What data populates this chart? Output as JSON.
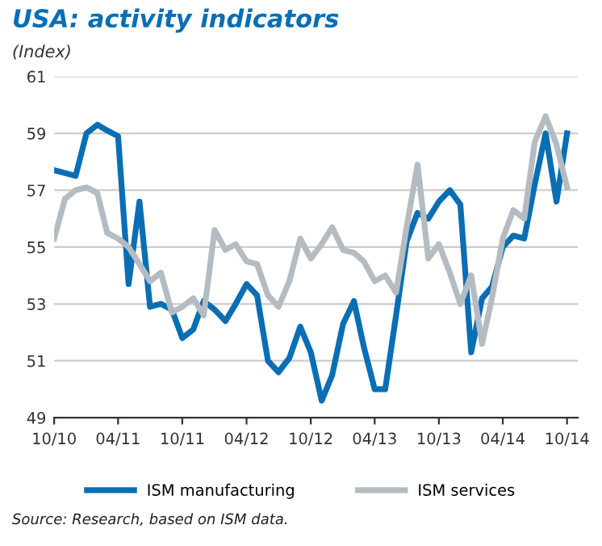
{
  "chart_data": {
    "type": "line",
    "title": "USA: activity indicators",
    "subtitle": "(Index)",
    "x": [
      "2010-10",
      "2010-11",
      "2010-12",
      "2011-01",
      "2011-02",
      "2011-03",
      "2011-04",
      "2011-05",
      "2011-06",
      "2011-07",
      "2011-08",
      "2011-09",
      "2011-10",
      "2011-11",
      "2011-12",
      "2012-01",
      "2012-02",
      "2012-03",
      "2012-04",
      "2012-05",
      "2012-06",
      "2012-07",
      "2012-08",
      "2012-09",
      "2012-10",
      "2012-11",
      "2012-12",
      "2013-01",
      "2013-02",
      "2013-03",
      "2013-04",
      "2013-05",
      "2013-06",
      "2013-07",
      "2013-08",
      "2013-09",
      "2013-10",
      "2013-11",
      "2013-12",
      "2014-01",
      "2014-02",
      "2014-03",
      "2014-04",
      "2014-05",
      "2014-06",
      "2014-07",
      "2014-08",
      "2014-09",
      "2014-10"
    ],
    "series": [
      {
        "name": "ISM manufacturing",
        "color": "#0a6eb4",
        "values": [
          57.7,
          57.6,
          57.5,
          59.0,
          59.3,
          59.1,
          58.9,
          53.7,
          56.6,
          52.9,
          53.0,
          52.8,
          51.8,
          52.1,
          53.1,
          52.8,
          52.4,
          53.0,
          53.7,
          53.3,
          51.0,
          50.6,
          51.1,
          52.2,
          51.3,
          49.6,
          50.5,
          52.3,
          53.1,
          51.5,
          50.0,
          50.0,
          52.6,
          55.2,
          56.2,
          56.0,
          56.6,
          57.0,
          56.5,
          51.3,
          53.2,
          53.6,
          55.0,
          55.4,
          55.3,
          57.2,
          59.0,
          56.6,
          59.0
        ]
      },
      {
        "name": "ISM services",
        "color": "#b4bcc1",
        "values": [
          55.3,
          56.7,
          57.0,
          57.1,
          56.9,
          55.5,
          55.3,
          55.0,
          54.4,
          53.8,
          54.1,
          52.7,
          52.9,
          53.2,
          52.6,
          55.6,
          54.9,
          55.1,
          54.5,
          54.4,
          53.3,
          52.9,
          53.8,
          55.3,
          54.6,
          55.1,
          55.7,
          54.9,
          54.8,
          54.5,
          53.8,
          54.0,
          53.4,
          55.7,
          57.9,
          54.6,
          55.1,
          54.1,
          53.0,
          54.0,
          51.6,
          53.2,
          55.3,
          56.3,
          56.0,
          58.7,
          59.6,
          58.6,
          57.1
        ]
      }
    ],
    "xlim": [
      "2010-10",
      "2014-11"
    ],
    "xticks": [
      {
        "value": "2010-10",
        "label": "10/10"
      },
      {
        "value": "2011-04",
        "label": "04/11"
      },
      {
        "value": "2011-10",
        "label": "10/11"
      },
      {
        "value": "2012-04",
        "label": "04/12"
      },
      {
        "value": "2012-10",
        "label": "10/12"
      },
      {
        "value": "2013-04",
        "label": "04/13"
      },
      {
        "value": "2013-10",
        "label": "10/13"
      },
      {
        "value": "2014-04",
        "label": "04/14"
      },
      {
        "value": "2014-10",
        "label": "10/14"
      }
    ],
    "ylim": [
      49,
      61
    ],
    "yticks": [
      49,
      51,
      53,
      55,
      57,
      59,
      61
    ],
    "grid": "y",
    "legend": "bottom",
    "marker": "none",
    "line_style": "solid",
    "annotations": [
      "Source: Research, based on ISM data."
    ]
  }
}
